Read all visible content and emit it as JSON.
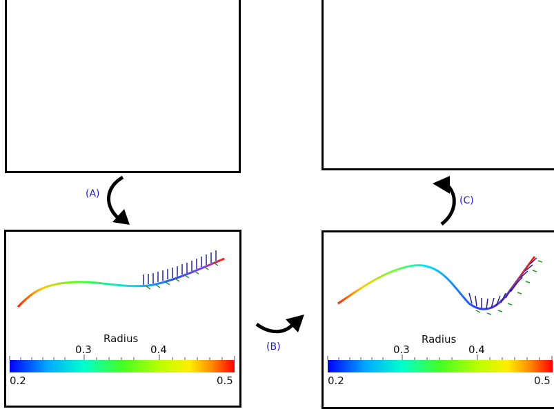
{
  "steps": {
    "a": "(A)",
    "b": "(B)",
    "c": "(C)"
  },
  "colorbar": {
    "title": "Radius",
    "min_label": "0.2",
    "max_label": "0.5",
    "tick_labels": [
      "0.3",
      "0.4"
    ],
    "gradient": [
      "#0000ff",
      "#00ccff",
      "#00ff88",
      "#66ff00",
      "#ffff00",
      "#ff8800",
      "#ff0000"
    ]
  },
  "colors": {
    "tube": "#ececea",
    "cut_ring": "#cc1111",
    "arrow_blue": "#22229a",
    "arrow_green": "#229922",
    "step_text": "#1a1adb"
  }
}
